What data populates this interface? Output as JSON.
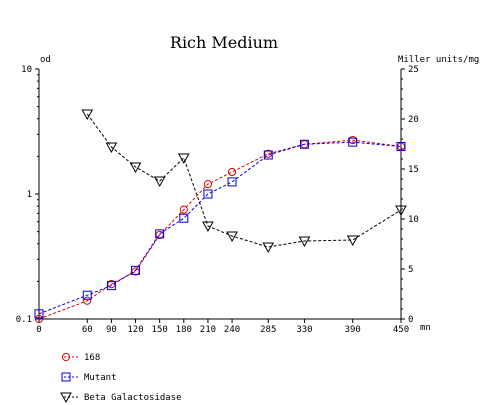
{
  "chart_data": {
    "type": "line",
    "title": "Rich Medium",
    "y_left_label": "od",
    "y_right_label": "Miller units/mg",
    "x_unit": "mn",
    "x_ticks": [
      0,
      60,
      90,
      120,
      150,
      180,
      210,
      240,
      285,
      330,
      390,
      450
    ],
    "x_tick_labels": [
      "0",
      "60",
      "90",
      "120",
      "150",
      "180",
      "210",
      "240",
      "285",
      "330",
      "390",
      "450"
    ],
    "y_left_scale": "log",
    "y_left_range": [
      0.1,
      10
    ],
    "y_left_tick_labels": [
      "0.1",
      "1",
      "10"
    ],
    "y_right_range": [
      0,
      25
    ],
    "y_right_ticks": [
      0,
      5,
      10,
      15,
      20,
      25
    ],
    "y_right_tick_labels": [
      "0",
      "5",
      "10",
      "15",
      "20",
      "25"
    ],
    "grid": false,
    "legend_position": "bottom-left",
    "series": [
      {
        "name": "168",
        "axis": "left",
        "marker": "circle",
        "color": "#e00000",
        "x": [
          0,
          60,
          90,
          120,
          150,
          180,
          210,
          240,
          285,
          330,
          390,
          450
        ],
        "values": [
          0.1,
          0.14,
          0.19,
          0.24,
          0.47,
          0.75,
          1.2,
          1.5,
          2.1,
          2.5,
          2.7,
          2.4
        ]
      },
      {
        "name": "Mutant",
        "axis": "left",
        "marker": "square",
        "color": "#0000e0",
        "x": [
          0,
          60,
          90,
          120,
          150,
          180,
          210,
          240,
          285,
          330,
          390,
          450
        ],
        "values": [
          0.11,
          0.155,
          0.185,
          0.245,
          0.48,
          0.64,
          1.0,
          1.25,
          2.05,
          2.5,
          2.6,
          2.4
        ]
      },
      {
        "name": "Beta Galactosidase",
        "axis": "right",
        "marker": "triangle-down",
        "color": "#000000",
        "x": [
          60,
          90,
          120,
          150,
          180,
          210,
          240,
          285,
          330,
          390,
          450
        ],
        "values": [
          20.5,
          17.2,
          15.2,
          13.8,
          16.1,
          9.3,
          8.3,
          7.2,
          7.8,
          7.9,
          10.9
        ]
      }
    ]
  }
}
